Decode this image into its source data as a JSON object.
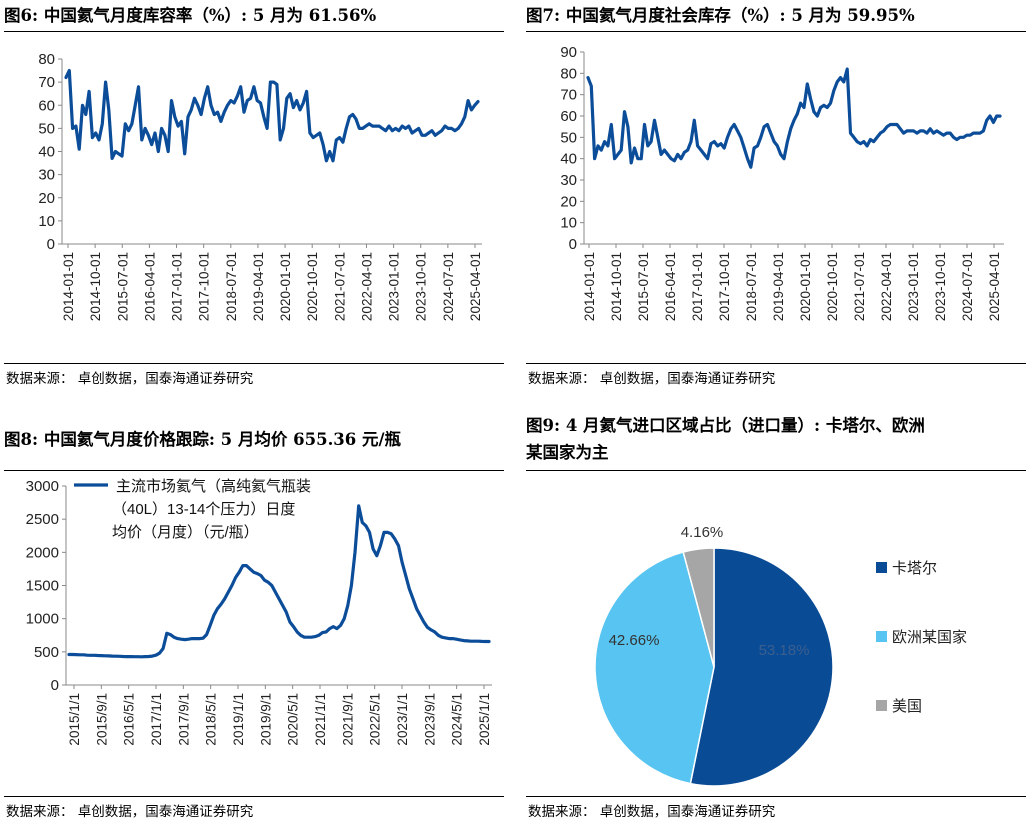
{
  "panels": [
    {
      "title": "图6:  中国氦气月度库容率（%）:  5 月为 61.56%",
      "source": "数据来源：  卓创数据，国泰海通证券研究"
    },
    {
      "title": "图7:  中国氦气月度社会库存（%）:  5 月为 59.95%",
      "source": "数据来源：  卓创数据，国泰海通证券研究"
    },
    {
      "title": "图8:  中国氦气月度价格跟踪:  5 月均价 655.36 元/瓶",
      "source": "数据来源：  卓创数据，国泰海通证券研究"
    },
    {
      "title_line1": "图9:  4 月氦气进口区域占比（进口量）:  卡塔尔、欧洲",
      "title_line2": "某国家为主",
      "source": "数据来源：  卓创数据，国泰海通证券研究"
    }
  ],
  "chart_data": [
    {
      "type": "line",
      "ylim": [
        0,
        80
      ],
      "yticks": [
        0,
        10,
        20,
        30,
        40,
        50,
        60,
        70,
        80
      ],
      "xticks": [
        "2014-01-01",
        "2014-10-01",
        "2015-07-01",
        "2016-04-01",
        "2017-01-01",
        "2017-10-01",
        "2018-07-01",
        "2019-04-01",
        "2020-01-01",
        "2020-10-01",
        "2021-07-01",
        "2022-04-01",
        "2023-01-01",
        "2023-10-01",
        "2024-07-01",
        "2025-04-01"
      ],
      "color": "#0c4d9a",
      "values": [
        72,
        75,
        50,
        51,
        41,
        60,
        56,
        66,
        46,
        48,
        45,
        52,
        70,
        58,
        37,
        40,
        39,
        38,
        52,
        49,
        52,
        60,
        68,
        45,
        50,
        47,
        43,
        48,
        40,
        50,
        47,
        40,
        62,
        55,
        51,
        53,
        39,
        55,
        58,
        63,
        60,
        56,
        63,
        68,
        60,
        56,
        57,
        53,
        57,
        60,
        62,
        61,
        64,
        68,
        57,
        62,
        63,
        68,
        62,
        61,
        55,
        50,
        70,
        70,
        69,
        45,
        50,
        63,
        65,
        59,
        62,
        58,
        61,
        66,
        48,
        46,
        47,
        48,
        43,
        36,
        40,
        36,
        45,
        46,
        44,
        50,
        55,
        56,
        54,
        50,
        50,
        51,
        52,
        51,
        51,
        51,
        50,
        49,
        51,
        49,
        50,
        49,
        51,
        50,
        51,
        48,
        49,
        50,
        47,
        47,
        48,
        49,
        47,
        48,
        49,
        51,
        50,
        50,
        49,
        50,
        52,
        55,
        62,
        58,
        60,
        61.56
      ]
    },
    {
      "type": "line",
      "ylim": [
        0,
        90
      ],
      "yticks": [
        0,
        10,
        20,
        30,
        40,
        50,
        60,
        70,
        80,
        90
      ],
      "xticks": [
        "2014-01-01",
        "2014-10-01",
        "2015-07-01",
        "2016-04-01",
        "2017-01-01",
        "2017-10-01",
        "2018-07-01",
        "2019-04-01",
        "2020-01-01",
        "2020-10-01",
        "2021-07-01",
        "2022-04-01",
        "2023-01-01",
        "2023-10-01",
        "2024-07-01",
        "2025-04-01"
      ],
      "color": "#0c4d9a",
      "values": [
        78,
        74,
        40,
        46,
        44,
        48,
        46,
        56,
        40,
        42,
        44,
        62,
        55,
        38,
        45,
        40,
        40,
        56,
        46,
        48,
        58,
        50,
        42,
        44,
        42,
        40,
        39,
        42,
        40,
        43,
        44,
        48,
        58,
        46,
        44,
        42,
        40,
        47,
        48,
        46,
        47,
        45,
        50,
        54,
        56,
        53,
        50,
        45,
        40,
        36,
        45,
        46,
        50,
        55,
        56,
        52,
        48,
        46,
        42,
        40,
        48,
        54,
        58,
        61,
        66,
        64,
        75,
        68,
        62,
        60,
        64,
        65,
        64,
        66,
        72,
        76,
        78,
        76,
        82,
        52,
        50,
        48,
        47,
        48,
        46,
        49,
        48,
        50,
        52,
        53,
        55,
        56,
        56,
        56,
        54,
        52,
        53,
        53,
        53,
        52,
        53,
        53,
        52,
        54,
        52,
        53,
        52,
        51,
        52,
        52,
        50,
        49,
        50,
        50,
        51,
        51,
        52,
        52,
        52,
        53,
        58,
        60,
        57,
        60,
        59.95
      ]
    },
    {
      "type": "line",
      "ylim": [
        0,
        3000
      ],
      "yticks": [
        0,
        500,
        1000,
        1500,
        2000,
        2500,
        3000
      ],
      "xticks": [
        "2015/1/1",
        "2015/9/1",
        "2016/5/1",
        "2017/1/1",
        "2017/9/1",
        "2018/5/1",
        "2019/1/1",
        "2019/9/1",
        "2020/5/1",
        "2021/1/1",
        "2021/9/1",
        "2022/5/1",
        "2023/1/1",
        "2023/9/1",
        "2024/5/1",
        "2025/1/1"
      ],
      "series": [
        {
          "name_lines": [
            "主流市场氦气（高纯氦气瓶装",
            "（40L）13-14个压力）日度",
            "均价（月度）（元/瓶）"
          ],
          "color": "#0c4d9a",
          "values": [
            460,
            460,
            458,
            456,
            455,
            450,
            448,
            448,
            445,
            443,
            440,
            438,
            436,
            434,
            432,
            430,
            428,
            428,
            427,
            426,
            425,
            428,
            430,
            435,
            450,
            480,
            550,
            780,
            760,
            720,
            700,
            690,
            685,
            690,
            700,
            700,
            700,
            705,
            760,
            900,
            1050,
            1150,
            1220,
            1300,
            1400,
            1500,
            1620,
            1700,
            1800,
            1800,
            1750,
            1700,
            1680,
            1650,
            1580,
            1550,
            1500,
            1400,
            1300,
            1200,
            1100,
            950,
            880,
            800,
            750,
            720,
            720,
            720,
            730,
            750,
            790,
            800,
            850,
            880,
            850,
            900,
            1000,
            1200,
            1500,
            2000,
            2700,
            2450,
            2400,
            2300,
            2050,
            1950,
            2100,
            2300,
            2300,
            2280,
            2200,
            2100,
            1850,
            1650,
            1450,
            1300,
            1150,
            1050,
            950,
            870,
            830,
            800,
            750,
            720,
            710,
            700,
            700,
            690,
            680,
            670,
            665,
            660,
            660,
            660,
            658,
            656,
            655.36
          ]
        }
      ]
    },
    {
      "type": "pie",
      "slices": [
        {
          "label": "卡塔尔",
          "value": 53.18,
          "pct_text": "53.18%",
          "color": "#0a4b96"
        },
        {
          "label": "欧洲某国家",
          "value": 42.66,
          "pct_text": "42.66%",
          "color": "#57c4f1"
        },
        {
          "label": "美国",
          "value": 4.16,
          "pct_text": "4.16%",
          "color": "#a6a6a6"
        }
      ]
    }
  ]
}
